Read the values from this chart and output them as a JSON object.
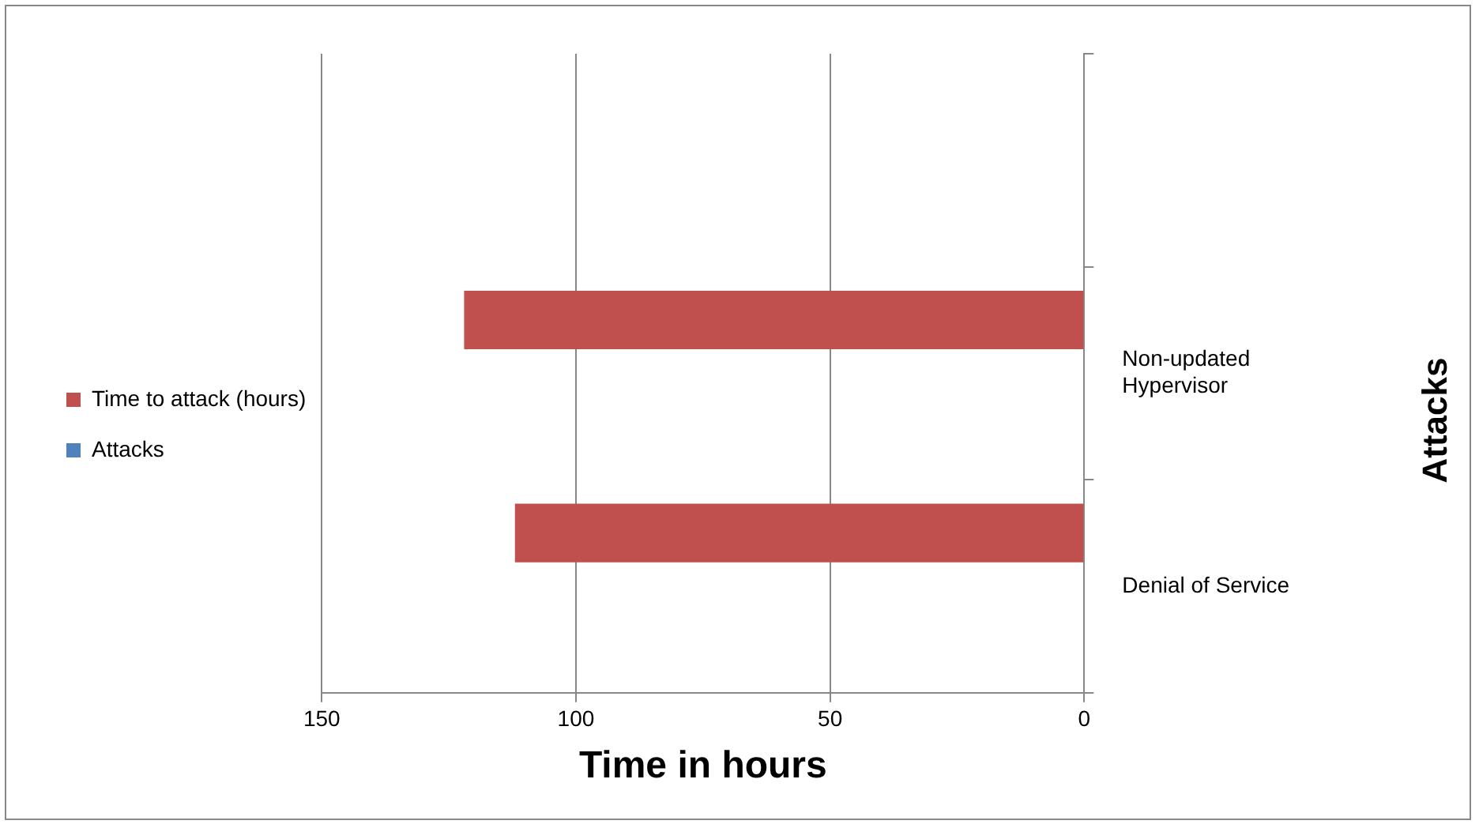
{
  "chart_data": {
    "type": "bar",
    "orientation": "horizontal",
    "xlabel": "Time in hours",
    "ylabel": "Attacks",
    "categories": [
      null,
      "Non-updated Hypervisor",
      "Denial of Service"
    ],
    "series": [
      {
        "name": "Time to attack (hours)",
        "color": "#c0504d",
        "values": [
          null,
          122,
          112
        ]
      },
      {
        "name": "Attacks",
        "color": "#4f81bd",
        "values": [
          null,
          null,
          null
        ]
      }
    ],
    "xlim": [
      150,
      0
    ],
    "xticks": [
      150,
      100,
      50,
      0
    ],
    "grid": "x",
    "legend": "left"
  }
}
